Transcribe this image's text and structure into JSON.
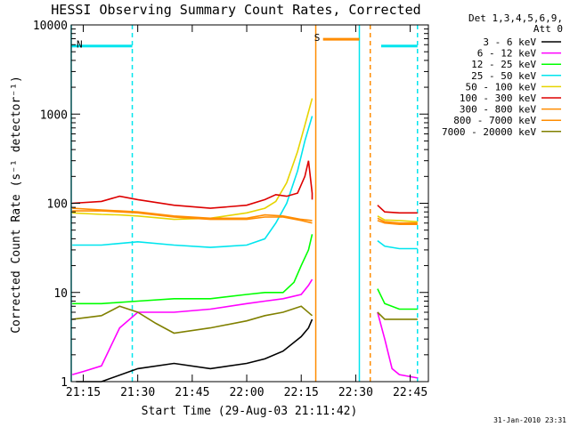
{
  "chart_data": {
    "type": "line",
    "title": "HESSI Observing Summary Count Rates, Corrected",
    "xlabel": "Start Time (29-Aug-03 21:11:42)",
    "ylabel": "Corrected Count Rate (s⁻¹ detector⁻¹)",
    "yscale": "log",
    "ylim": [
      1,
      10000
    ],
    "xlim": [
      "21:11:42",
      "22:50:00"
    ],
    "x_ticks": [
      "21:15",
      "21:30",
      "21:45",
      "22:00",
      "22:15",
      "22:30",
      "22:45"
    ],
    "y_ticks": [
      "1",
      "10",
      "100",
      "1000",
      "10000"
    ],
    "legend_header": [
      "Det 1,3,4,5,6,9,",
      "Att 0"
    ],
    "legend_position": "right",
    "footer": "31-Jan-2010 23:31",
    "flags": [
      {
        "label": "N",
        "color": "#00e5ee",
        "start": "21:11:42",
        "end": "21:28:30",
        "y": 5800
      },
      {
        "label": "S",
        "color": "#ff8c00",
        "start": "22:21:00",
        "end": "22:31:00",
        "y": 6900
      },
      {
        "label": "",
        "color": "#00e5ee",
        "start": "22:37:00",
        "end": "22:47:00",
        "y": 5800
      }
    ],
    "vertical_lines": [
      {
        "time": "21:11:42",
        "color": "#00e5ee",
        "style": "solid"
      },
      {
        "time": "21:28:30",
        "color": "#00e5ee",
        "style": "dashed"
      },
      {
        "time": "22:19:00",
        "color": "#ff8c00",
        "style": "solid"
      },
      {
        "time": "22:31:00",
        "color": "#00e5ee",
        "style": "solid"
      },
      {
        "time": "22:34:00",
        "color": "#ff8c00",
        "style": "dashed"
      },
      {
        "time": "22:47:00",
        "color": "#00e5ee",
        "style": "dashed"
      }
    ],
    "series": [
      {
        "name": "3 - 6 keV",
        "color": "#000000",
        "segments": [
          {
            "x": [
              "21:13",
              "21:20",
              "21:30",
              "21:40",
              "21:50",
              "22:00",
              "22:05",
              "22:10",
              "22:15",
              "22:17",
              "22:18"
            ],
            "y": [
              1,
              1,
              1.4,
              1.6,
              1.4,
              1.6,
              1.8,
              2.2,
              3.2,
              4,
              5
            ]
          }
        ]
      },
      {
        "name": "6 - 12 keV",
        "color": "#ff00ff",
        "segments": [
          {
            "x": [
              "21:12",
              "21:15",
              "21:20",
              "21:25",
              "21:30",
              "21:40",
              "21:50",
              "22:00",
              "22:05",
              "22:10",
              "22:15",
              "22:17",
              "22:18"
            ],
            "y": [
              1.2,
              1.3,
              1.5,
              4,
              6,
              6,
              6.5,
              7.5,
              8,
              8.5,
              9.5,
              12,
              14
            ]
          },
          {
            "x": [
              "22:36",
              "22:38",
              "22:40",
              "22:42",
              "22:47"
            ],
            "y": [
              6,
              3,
              1.4,
              1.2,
              1.1
            ]
          }
        ]
      },
      {
        "name": "12 - 25 keV",
        "color": "#00ff00",
        "segments": [
          {
            "x": [
              "21:12",
              "21:20",
              "21:30",
              "21:40",
              "21:50",
              "22:00",
              "22:05",
              "22:10",
              "22:13",
              "22:15",
              "22:17",
              "22:18"
            ],
            "y": [
              7.5,
              7.5,
              8,
              8.5,
              8.5,
              9.5,
              10,
              10,
              13,
              20,
              30,
              45
            ]
          },
          {
            "x": [
              "22:36",
              "22:38",
              "22:42",
              "22:47"
            ],
            "y": [
              11,
              7.5,
              6.5,
              6.5
            ]
          }
        ]
      },
      {
        "name": "25 - 50 keV",
        "color": "#00e5ee",
        "segments": [
          {
            "x": [
              "21:12",
              "21:20",
              "21:30",
              "21:40",
              "21:50",
              "22:00",
              "22:05",
              "22:08",
              "22:11",
              "22:14",
              "22:16",
              "22:18"
            ],
            "y": [
              34,
              34,
              37,
              34,
              32,
              34,
              40,
              60,
              100,
              230,
              500,
              950
            ]
          },
          {
            "x": [
              "22:36",
              "22:38",
              "22:42",
              "22:47"
            ],
            "y": [
              38,
              33,
              31,
              31
            ]
          }
        ]
      },
      {
        "name": "50 - 100 keV",
        "color": "#e6d400",
        "segments": [
          {
            "x": [
              "21:12",
              "21:20",
              "21:25",
              "21:30",
              "21:40",
              "21:50",
              "22:00",
              "22:05",
              "22:08",
              "22:11",
              "22:14",
              "22:16",
              "22:18"
            ],
            "y": [
              78,
              75,
              74,
              72,
              66,
              68,
              78,
              88,
              105,
              170,
              380,
              750,
              1500
            ]
          },
          {
            "x": [
              "22:36",
              "22:38",
              "22:42",
              "22:47"
            ],
            "y": [
              72,
              65,
              64,
              62
            ]
          }
        ]
      },
      {
        "name": "100 - 300 keV",
        "color": "#dd0000",
        "segments": [
          {
            "x": [
              "21:12",
              "21:20",
              "21:25",
              "21:30",
              "21:40",
              "21:50",
              "22:00",
              "22:05",
              "22:08",
              "22:11",
              "22:14",
              "22:16",
              "22:17",
              "22:18",
              "22:18"
            ],
            "y": [
              100,
              105,
              120,
              110,
              95,
              88,
              95,
              110,
              125,
              120,
              130,
              200,
              300,
              130,
              110
            ]
          },
          {
            "x": [
              "22:36",
              "22:38",
              "22:42",
              "22:47"
            ],
            "y": [
              95,
              80,
              78,
              78
            ]
          }
        ]
      },
      {
        "name": "300 - 800 keV",
        "color": "#ff8c00",
        "segments": [
          {
            "x": [
              "21:12",
              "21:20",
              "21:25",
              "21:30",
              "21:40",
              "21:50",
              "22:00",
              "22:05",
              "22:10",
              "22:15",
              "22:18"
            ],
            "y": [
              88,
              84,
              82,
              80,
              72,
              68,
              68,
              74,
              72,
              66,
              64
            ]
          },
          {
            "x": [
              "22:36",
              "22:38",
              "22:42",
              "22:47"
            ],
            "y": [
              68,
              62,
              60,
              60
            ]
          }
        ]
      },
      {
        "name": "800 - 7000 keV",
        "color": "#ff8c00",
        "segments": [
          {
            "x": [
              "21:12",
              "21:20",
              "21:25",
              "21:30",
              "21:40",
              "21:50",
              "22:00",
              "22:05",
              "22:10",
              "22:15",
              "22:18"
            ],
            "y": [
              82,
              82,
              80,
              78,
              70,
              66,
              66,
              70,
              70,
              64,
              60
            ]
          },
          {
            "x": [
              "22:36",
              "22:38",
              "22:42",
              "22:47"
            ],
            "y": [
              64,
              60,
              58,
              58
            ]
          }
        ]
      },
      {
        "name": "7000 - 20000 keV",
        "color": "#808000",
        "segments": [
          {
            "x": [
              "21:12",
              "21:20",
              "21:25",
              "21:30",
              "21:35",
              "21:40",
              "21:50",
              "22:00",
              "22:05",
              "22:10",
              "22:15",
              "22:18"
            ],
            "y": [
              5,
              5.5,
              7,
              6,
              4.5,
              3.5,
              4,
              4.8,
              5.5,
              6,
              7,
              5.5
            ]
          },
          {
            "x": [
              "22:36",
              "22:38",
              "22:42",
              "22:47"
            ],
            "y": [
              6,
              5,
              5,
              5
            ]
          }
        ]
      }
    ]
  }
}
